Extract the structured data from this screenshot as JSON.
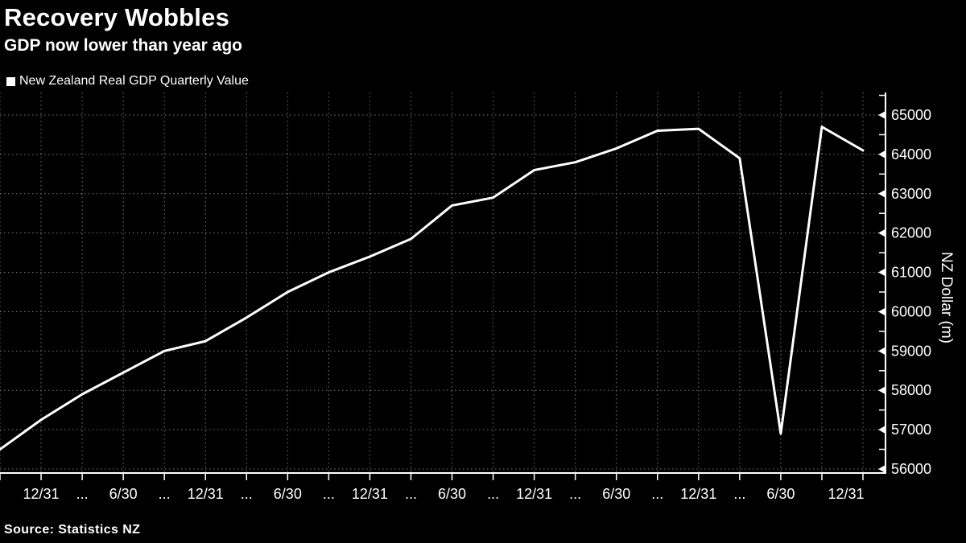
{
  "title": "Recovery Wobbles",
  "subtitle": "GDP now lower than year ago",
  "legend": {
    "label": "New Zealand Real GDP Quarterly Value"
  },
  "source": "Source: Statistics NZ",
  "colors": {
    "background": "#000000",
    "text": "#ffffff",
    "line": "#ffffff",
    "grid": "#777777",
    "axis": "#ffffff"
  },
  "chart_data": {
    "type": "line",
    "title": "Recovery Wobbles",
    "subtitle": "GDP now lower than year ago",
    "ylabel": "NZ Dollar (m)",
    "xlabel": "",
    "grid": true,
    "legend_position": "top-left",
    "ylim": [
      55900,
      65575
    ],
    "yticks": [
      56000,
      57000,
      58000,
      59000,
      60000,
      61000,
      62000,
      63000,
      64000,
      65000
    ],
    "y_minor_tick_step": 500,
    "x_tick_labels": [
      "",
      "12/31",
      "...",
      "6/30",
      "...",
      "12/31",
      "...",
      "6/30",
      "...",
      "12/31",
      "...",
      "6/30",
      "...",
      "12/31",
      "...",
      "6/30",
      "...",
      "12/31",
      "...",
      "6/30",
      "",
      "12/31"
    ],
    "series": [
      {
        "name": "New Zealand Real GDP Quarterly Value",
        "values": [
          56500,
          57250,
          57900,
          58450,
          59000,
          59250,
          59850,
          60500,
          61000,
          61400,
          61850,
          62700,
          62900,
          63600,
          63800,
          64150,
          64600,
          64650,
          63900,
          56900,
          64700,
          64100
        ]
      }
    ]
  }
}
